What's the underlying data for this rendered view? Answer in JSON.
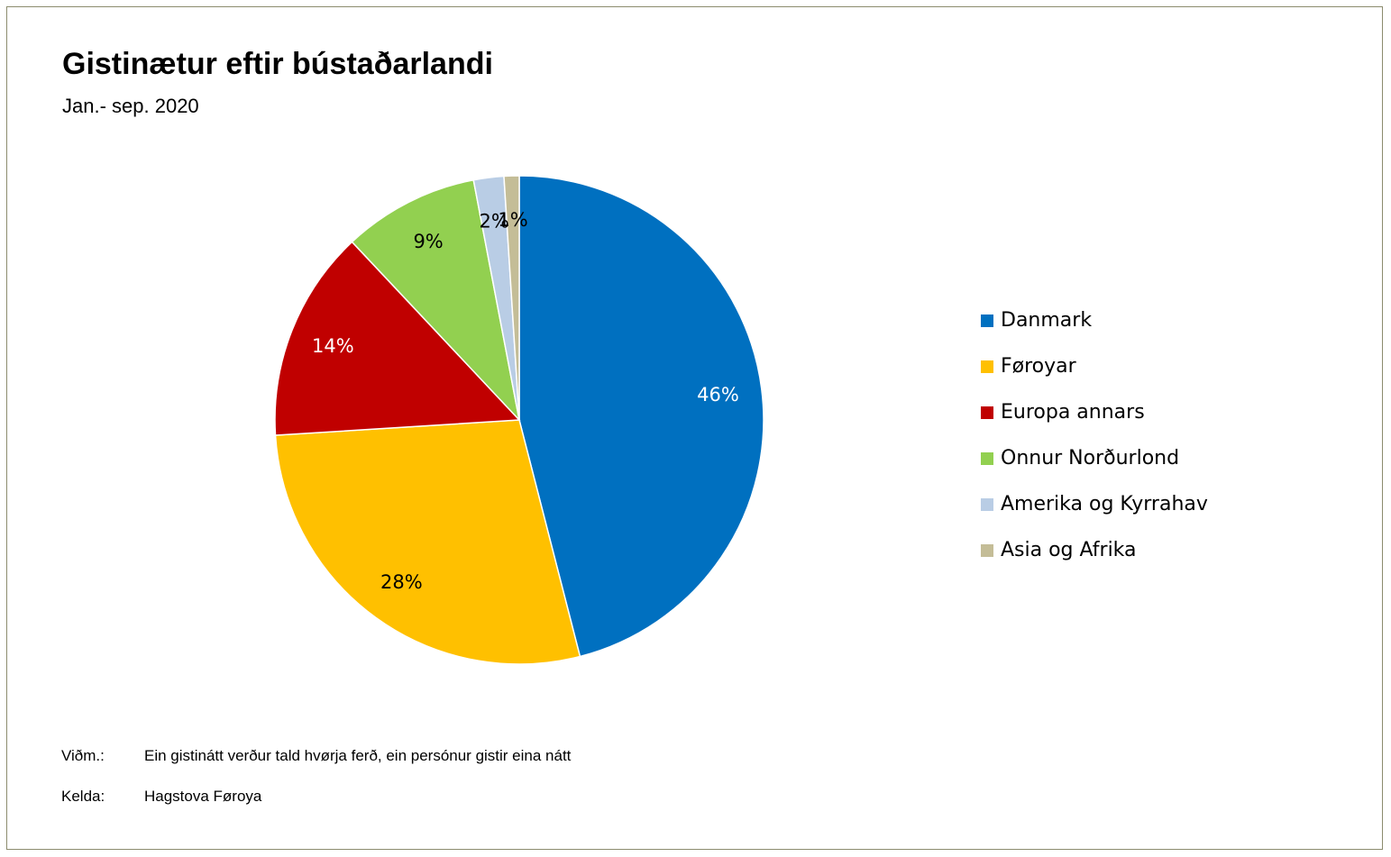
{
  "chart_data": {
    "type": "pie",
    "title": "Gistinætur eftir bústaðarlandi",
    "subtitle": "Jan.- sep. 2020",
    "slices": [
      {
        "name": "Danmark",
        "value": 46,
        "label": "46%",
        "color": "#0070c0",
        "label_color": "#ffffff"
      },
      {
        "name": "Føroyar",
        "value": 28,
        "label": "28%",
        "color": "#ffc000",
        "label_color": "#000000"
      },
      {
        "name": "Europa annars",
        "value": 14,
        "label": "14%",
        "color": "#c00000",
        "label_color": "#ffffff"
      },
      {
        "name": "Onnur Norðurlond",
        "value": 9,
        "label": "9%",
        "color": "#92d050",
        "label_color": "#000000"
      },
      {
        "name": "Amerika og Kyrrahav",
        "value": 2,
        "label": "2%",
        "color": "#b9cde5",
        "label_color": "#000000"
      },
      {
        "name": "Asia og Afrika",
        "value": 1,
        "label": "1%",
        "color": "#c4bd97",
        "label_color": "#000000"
      }
    ],
    "legend_position": "right"
  },
  "notes": {
    "remark_label": "Viðm.:",
    "remark_text": "Ein gistinátt verður tald hvørja ferð, ein persónur gistir eina nátt",
    "source_label": "Kelda:",
    "source_text": "Hagstova Føroya"
  },
  "colors": {
    "frame_border": "#8c8c6e"
  }
}
